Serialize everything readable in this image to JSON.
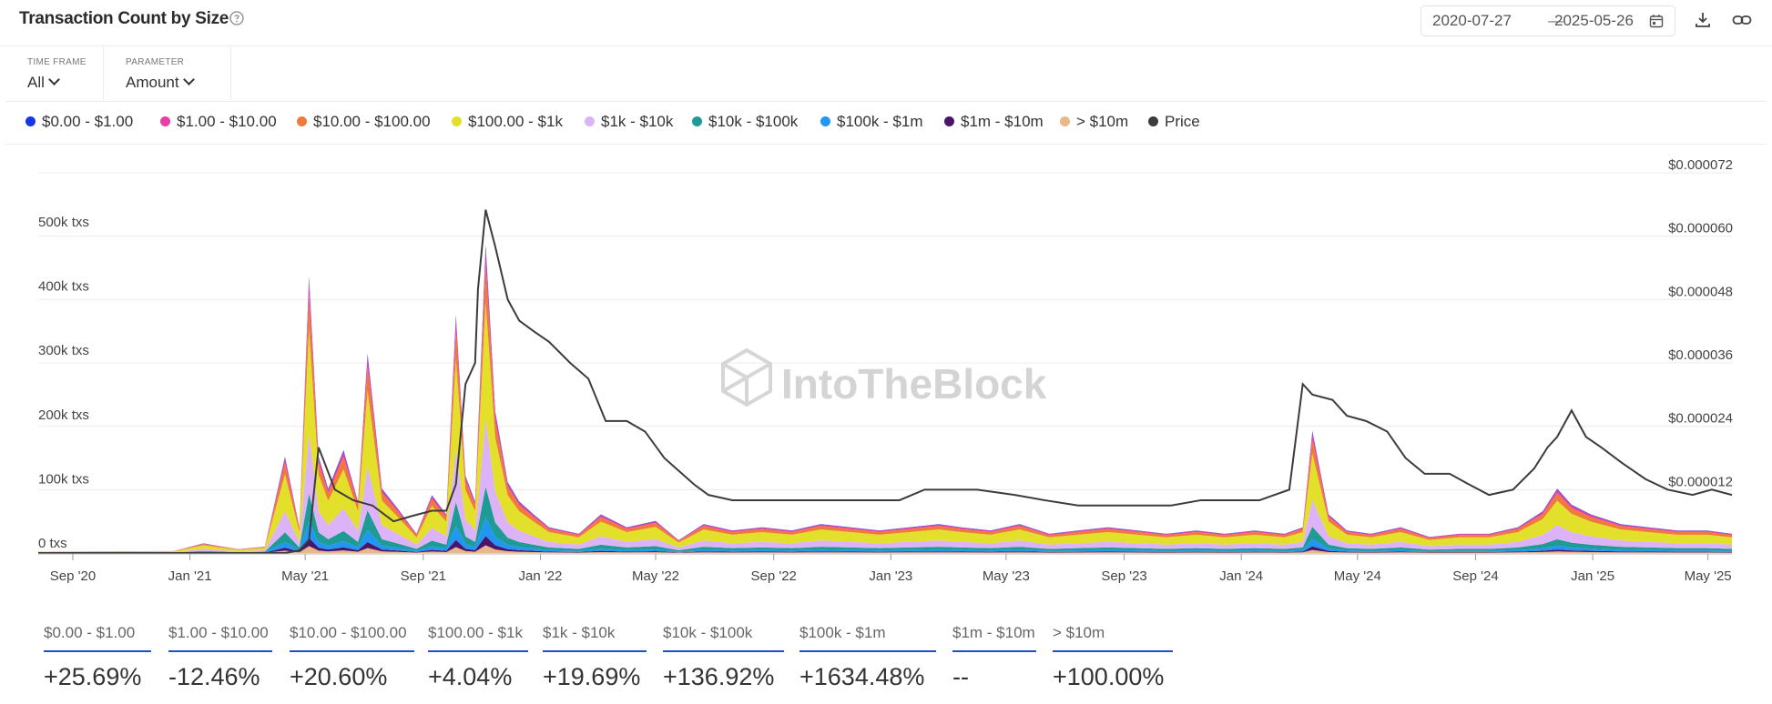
{
  "header": {
    "title": "Transaction Count by Size",
    "date_start": "2020-07-27",
    "date_sep": "—",
    "date_end": "2025-05-26"
  },
  "controls": {
    "time_frame_label": "TIME FRAME",
    "time_frame_value": "All",
    "parameter_label": "PARAMETER",
    "parameter_value": "Amount"
  },
  "watermark": "IntoTheBlock",
  "chart_data": {
    "type": "area",
    "stacked": true,
    "y_left": {
      "ticks": [
        "0 txs",
        "100k txs",
        "200k txs",
        "300k txs",
        "400k txs",
        "500k txs"
      ],
      "range": [
        0,
        500000
      ]
    },
    "y_right": {
      "ticks": [
        "$0.000012",
        "$0.000024",
        "$0.000036",
        "$0.000048",
        "$0.000060",
        "$0.000072"
      ],
      "range": [
        0,
        7.2e-05
      ]
    },
    "x_ticks": [
      "Sep '20",
      "Jan '21",
      "May '21",
      "Sep '21",
      "Jan '22",
      "May '22",
      "Sep '22",
      "Jan '23",
      "May '23",
      "Sep '23",
      "Jan '24",
      "May '24",
      "Sep '24",
      "Jan '25",
      "May '25"
    ],
    "x_range": [
      "2020-07-27",
      "2025-05-26"
    ],
    "x": [
      "2020-07-27",
      "2020-12-15",
      "2021-01-15",
      "2021-02-20",
      "2021-03-20",
      "2021-04-10",
      "2021-04-25",
      "2021-05-05",
      "2021-05-15",
      "2021-05-25",
      "2021-06-10",
      "2021-06-25",
      "2021-07-05",
      "2021-07-20",
      "2021-08-05",
      "2021-08-25",
      "2021-09-10",
      "2021-09-25",
      "2021-10-05",
      "2021-10-15",
      "2021-10-25",
      "2021-11-05",
      "2021-11-15",
      "2021-11-28",
      "2021-12-10",
      "2021-12-25",
      "2022-01-10",
      "2022-02-10",
      "2022-03-05",
      "2022-04-01",
      "2022-05-01",
      "2022-05-25",
      "2022-06-20",
      "2022-07-20",
      "2022-08-20",
      "2022-09-20",
      "2022-10-20",
      "2022-11-20",
      "2022-12-20",
      "2023-01-20",
      "2023-02-20",
      "2023-03-15",
      "2023-04-15",
      "2023-05-15",
      "2023-06-15",
      "2023-07-15",
      "2023-08-15",
      "2023-09-15",
      "2023-10-15",
      "2023-11-15",
      "2023-12-15",
      "2024-01-15",
      "2024-02-15",
      "2024-03-05",
      "2024-03-15",
      "2024-04-01",
      "2024-04-20",
      "2024-05-15",
      "2024-06-15",
      "2024-07-15",
      "2024-08-15",
      "2024-09-15",
      "2024-10-15",
      "2024-11-10",
      "2024-11-25",
      "2024-12-10",
      "2024-12-30",
      "2025-01-30",
      "2025-02-28",
      "2025-03-30",
      "2025-04-30",
      "2025-05-26"
    ],
    "totals": [
      2000,
      3000,
      15000,
      6000,
      10000,
      150000,
      40000,
      430000,
      150000,
      100000,
      160000,
      80000,
      310000,
      100000,
      70000,
      30000,
      90000,
      60000,
      370000,
      120000,
      80000,
      480000,
      220000,
      110000,
      80000,
      60000,
      40000,
      30000,
      60000,
      40000,
      50000,
      20000,
      45000,
      35000,
      40000,
      35000,
      45000,
      40000,
      35000,
      40000,
      45000,
      40000,
      35000,
      45000,
      30000,
      35000,
      40000,
      35000,
      30000,
      35000,
      30000,
      35000,
      30000,
      40000,
      190000,
      60000,
      35000,
      30000,
      40000,
      25000,
      30000,
      30000,
      40000,
      65000,
      100000,
      75000,
      60000,
      45000,
      40000,
      35000,
      35000,
      30000
    ],
    "series_shares": [
      {
        "name": "$0.00 - $1.00",
        "color": "#1936e6",
        "share": 0.015
      },
      {
        "name": "$1.00 - $10.00",
        "color": "#e83ea6",
        "share": 0.05
      },
      {
        "name": "$10.00 - $100.00",
        "color": "#f07a3a",
        "share": 0.12
      },
      {
        "name": "$100.00 - $1k",
        "color": "#e2e02a",
        "share": 0.38
      },
      {
        "name": "$1k - $10k",
        "color": "#dcb3f6",
        "share": 0.22
      },
      {
        "name": "$10k - $100k",
        "color": "#1e9b94",
        "share": 0.1
      },
      {
        "name": "$100k - $1m",
        "color": "#2196f3",
        "share": 0.06
      },
      {
        "name": "$1m - $10m",
        "color": "#4a146b",
        "share": 0.03
      },
      {
        "name": "> $10m",
        "color": "#e8b88a",
        "share": 0.025
      }
    ],
    "price_series": {
      "name": "Price",
      "color": "#3c3c3c",
      "x": [
        "2020-07-27",
        "2021-04-10",
        "2021-04-25",
        "2021-05-05",
        "2021-05-15",
        "2021-06-01",
        "2021-06-20",
        "2021-07-10",
        "2021-08-01",
        "2021-08-20",
        "2021-09-10",
        "2021-09-25",
        "2021-10-05",
        "2021-10-15",
        "2021-10-25",
        "2021-10-28",
        "2021-11-05",
        "2021-11-15",
        "2021-11-28",
        "2021-12-10",
        "2021-12-25",
        "2022-01-10",
        "2022-02-01",
        "2022-02-20",
        "2022-03-10",
        "2022-04-01",
        "2022-04-20",
        "2022-05-10",
        "2022-06-10",
        "2022-06-25",
        "2022-07-20",
        "2022-08-15",
        "2022-09-10",
        "2022-10-10",
        "2022-11-10",
        "2022-12-10",
        "2023-01-10",
        "2023-02-05",
        "2023-03-01",
        "2023-04-01",
        "2023-05-10",
        "2023-06-10",
        "2023-07-15",
        "2023-08-15",
        "2023-09-15",
        "2023-10-20",
        "2023-11-20",
        "2023-12-20",
        "2024-01-20",
        "2024-02-20",
        "2024-03-05",
        "2024-03-15",
        "2024-04-05",
        "2024-04-20",
        "2024-05-10",
        "2024-06-01",
        "2024-06-20",
        "2024-07-10",
        "2024-08-05",
        "2024-08-25",
        "2024-09-15",
        "2024-10-10",
        "2024-11-01",
        "2024-11-15",
        "2024-11-25",
        "2024-12-10",
        "2024-12-25",
        "2025-01-10",
        "2025-02-01",
        "2025-02-25",
        "2025-03-20",
        "2025-04-15",
        "2025-05-05",
        "2025-05-26"
      ],
      "y": [
        0.0,
        0.0,
        5e-07,
        2.5e-06,
        2e-05,
        1.2e-05,
        1e-05,
        9e-06,
        6e-06,
        7e-06,
        8e-06,
        8e-06,
        1.3e-05,
        3.2e-05,
        3.6e-05,
        5e-05,
        6.5e-05,
        5.8e-05,
        4.8e-05,
        4.4e-05,
        4.2e-05,
        4e-05,
        3.6e-05,
        3.3e-05,
        2.5e-05,
        2.5e-05,
        2.3e-05,
        1.8e-05,
        1.3e-05,
        1.1e-05,
        1e-05,
        1e-05,
        1e-05,
        1e-05,
        1e-05,
        1e-05,
        1e-05,
        1.2e-05,
        1.2e-05,
        1.2e-05,
        1.1e-05,
        1e-05,
        9e-06,
        9e-06,
        9e-06,
        9e-06,
        1e-05,
        1e-05,
        1e-05,
        1.2e-05,
        3.2e-05,
        3e-05,
        2.9e-05,
        2.6e-05,
        2.5e-05,
        2.3e-05,
        1.8e-05,
        1.5e-05,
        1.5e-05,
        1.3e-05,
        1.1e-05,
        1.2e-05,
        1.6e-05,
        2e-05,
        2.2e-05,
        2.7e-05,
        2.2e-05,
        2e-05,
        1.7e-05,
        1.4e-05,
        1.2e-05,
        1.1e-05,
        1.2e-05,
        1.1e-05
      ]
    }
  },
  "legend": [
    {
      "label": "$0.00 - $1.00",
      "color": "#1936e6"
    },
    {
      "label": "$1.00 - $10.00",
      "color": "#e83ea6"
    },
    {
      "label": "$10.00 - $100.00",
      "color": "#f07a3a"
    },
    {
      "label": "$100.00 - $1k",
      "color": "#e2e02a"
    },
    {
      "label": "$1k - $10k",
      "color": "#dcb3f6"
    },
    {
      "label": "$10k - $100k",
      "color": "#1e9b94"
    },
    {
      "label": "$100k - $1m",
      "color": "#2196f3"
    },
    {
      "label": "$1m - $10m",
      "color": "#4a146b"
    },
    {
      "label": "> $10m",
      "color": "#e8b88a"
    },
    {
      "label": "Price",
      "color": "#3c3c3c"
    }
  ],
  "stats": [
    {
      "label": "$0.00 - $1.00",
      "value": "+25.69%"
    },
    {
      "label": "$1.00 - $10.00",
      "value": "-12.46%"
    },
    {
      "label": "$10.00 - $100.00",
      "value": "+20.60%"
    },
    {
      "label": "$100.00 - $1k",
      "value": "+4.04%"
    },
    {
      "label": "$1k - $10k",
      "value": "+19.69%"
    },
    {
      "label": "$10k - $100k",
      "value": "+136.92%"
    },
    {
      "label": "$100k - $1m",
      "value": "+1634.48%"
    },
    {
      "label": "$1m - $10m",
      "value": "--"
    },
    {
      "label": "> $10m",
      "value": "+100.00%"
    }
  ]
}
